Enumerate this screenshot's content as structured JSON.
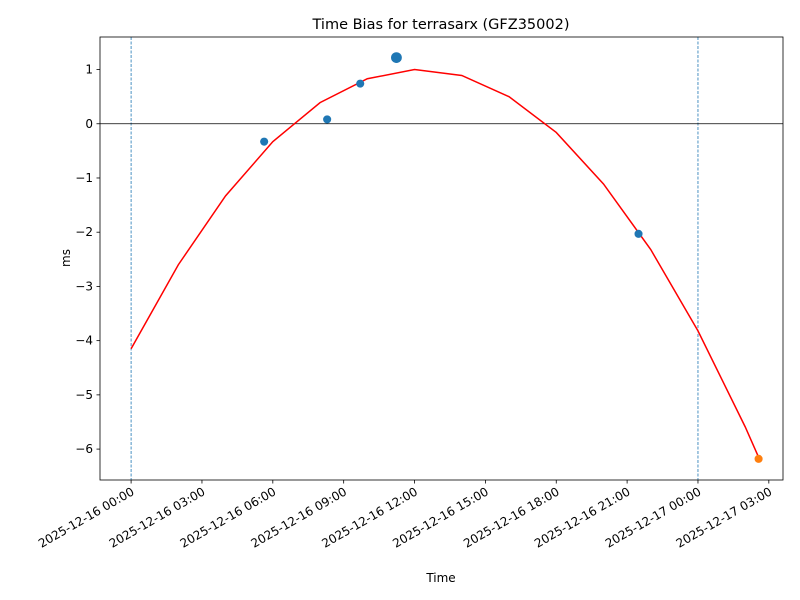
{
  "chart_data": {
    "type": "scatter",
    "title": "Time Bias for terrasarx (GFZ35002)",
    "x_label": "Time",
    "y_label": "ms",
    "xlim": [
      "2025-12-15 22:41",
      "2025-12-17 03:36"
    ],
    "ylim": [
      -6.57,
      1.6
    ],
    "xticks": [
      "2025-12-16 00:00",
      "2025-12-16 03:00",
      "2025-12-16 06:00",
      "2025-12-16 09:00",
      "2025-12-16 12:00",
      "2025-12-16 15:00",
      "2025-12-16 18:00",
      "2025-12-16 21:00",
      "2025-12-17 00:00",
      "2025-12-17 03:00"
    ],
    "yticks": [
      {
        "value": -6,
        "label": "−6"
      },
      {
        "value": -5,
        "label": "−5"
      },
      {
        "value": -4,
        "label": "−4"
      },
      {
        "value": -3,
        "label": "−3"
      },
      {
        "value": -2,
        "label": "−2"
      },
      {
        "value": -1,
        "label": "−1"
      },
      0,
      1
    ],
    "hline": 0,
    "hline_color": "#000000",
    "vlines": [
      "2025-12-16 00:00",
      "2025-12-17 00:00"
    ],
    "vline_color": "#1f77b4",
    "fit": {
      "color": "#ff0000",
      "x": [
        "2025-12-16 00:00",
        "2025-12-16 02:00",
        "2025-12-16 04:00",
        "2025-12-16 06:00",
        "2025-12-16 08:00",
        "2025-12-16 10:00",
        "2025-12-16 12:00",
        "2025-12-16 14:00",
        "2025-12-16 16:00",
        "2025-12-16 18:00",
        "2025-12-16 20:00",
        "2025-12-16 22:00",
        "2025-12-17 00:00",
        "2025-12-17 02:00",
        "2025-12-17 02:34"
      ],
      "values": [
        -4.15,
        -2.6,
        -1.33,
        -0.33,
        0.39,
        0.83,
        1.0,
        0.89,
        0.5,
        -0.16,
        -1.11,
        -2.32,
        -3.82,
        -5.59,
        -6.15
      ]
    },
    "series": [
      {
        "color": "#1f77b4",
        "x": [
          "2025-12-16 05:38",
          "2025-12-16 08:18",
          "2025-12-16 09:42",
          "2025-12-16 11:14",
          "2025-12-16 21:29"
        ],
        "values": [
          -0.33,
          0.08,
          0.74,
          1.22,
          -2.03
        ],
        "sizes": [
          36,
          36,
          36,
          64,
          36
        ]
      },
      {
        "color": "#ff7f0e",
        "x": [
          "2025-12-17 02:34"
        ],
        "values": [
          -6.18
        ],
        "sizes": [
          36
        ]
      }
    ]
  }
}
